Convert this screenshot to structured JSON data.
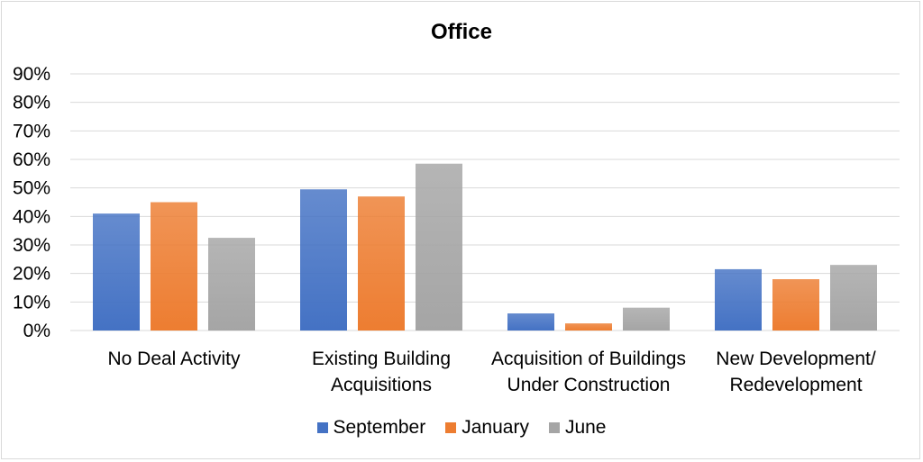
{
  "chart_data": {
    "type": "bar",
    "title": "Office",
    "categories": [
      [
        "No Deal Activity"
      ],
      [
        "Existing Building",
        "Acquisitions"
      ],
      [
        "Acquisition of Buildings",
        "Under Construction"
      ],
      [
        "New Development/",
        "Redevelopment"
      ]
    ],
    "series": [
      {
        "name": "September",
        "color": "#4472c4",
        "values": [
          41,
          49.5,
          6,
          21.5
        ]
      },
      {
        "name": "January",
        "color": "#ed7d31",
        "values": [
          45,
          47,
          2.5,
          18
        ]
      },
      {
        "name": "June",
        "color": "#a5a5a5",
        "values": [
          32.5,
          58.5,
          8,
          23
        ]
      }
    ],
    "y_ticks": [
      "0%",
      "10%",
      "20%",
      "30%",
      "40%",
      "50%",
      "60%",
      "70%",
      "80%",
      "90%"
    ],
    "ylim": [
      0,
      90
    ],
    "grid": true,
    "legend_position": "bottom"
  }
}
